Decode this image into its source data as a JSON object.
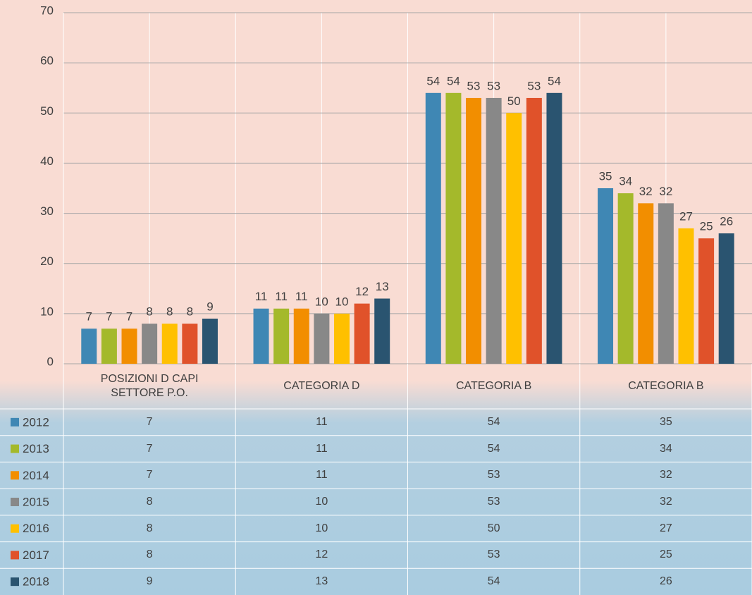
{
  "chart_data": {
    "type": "bar",
    "categories": [
      "POSIZIONI D CAPI SETTORE P.O.",
      "CATEGORIA D",
      "CATEGORIA B",
      "CATEGORIA B"
    ],
    "series": [
      {
        "name": "2012",
        "color": "#3f87b4",
        "values": [
          7,
          11,
          54,
          35
        ]
      },
      {
        "name": "2013",
        "color": "#a4b92b",
        "values": [
          7,
          11,
          54,
          34
        ]
      },
      {
        "name": "2014",
        "color": "#f28e00",
        "values": [
          7,
          11,
          53,
          32
        ]
      },
      {
        "name": "2015",
        "color": "#888888",
        "values": [
          8,
          10,
          53,
          32
        ]
      },
      {
        "name": "2016",
        "color": "#ffc000",
        "values": [
          8,
          10,
          50,
          27
        ]
      },
      {
        "name": "2017",
        "color": "#e0522a",
        "values": [
          8,
          12,
          53,
          25
        ]
      },
      {
        "name": "2018",
        "color": "#2a5470",
        "values": [
          9,
          13,
          54,
          26
        ]
      }
    ],
    "ylim": [
      0,
      70
    ],
    "yticks": [
      0,
      10,
      20,
      30,
      40,
      50,
      60,
      70
    ],
    "grid": true,
    "data_table": true
  }
}
